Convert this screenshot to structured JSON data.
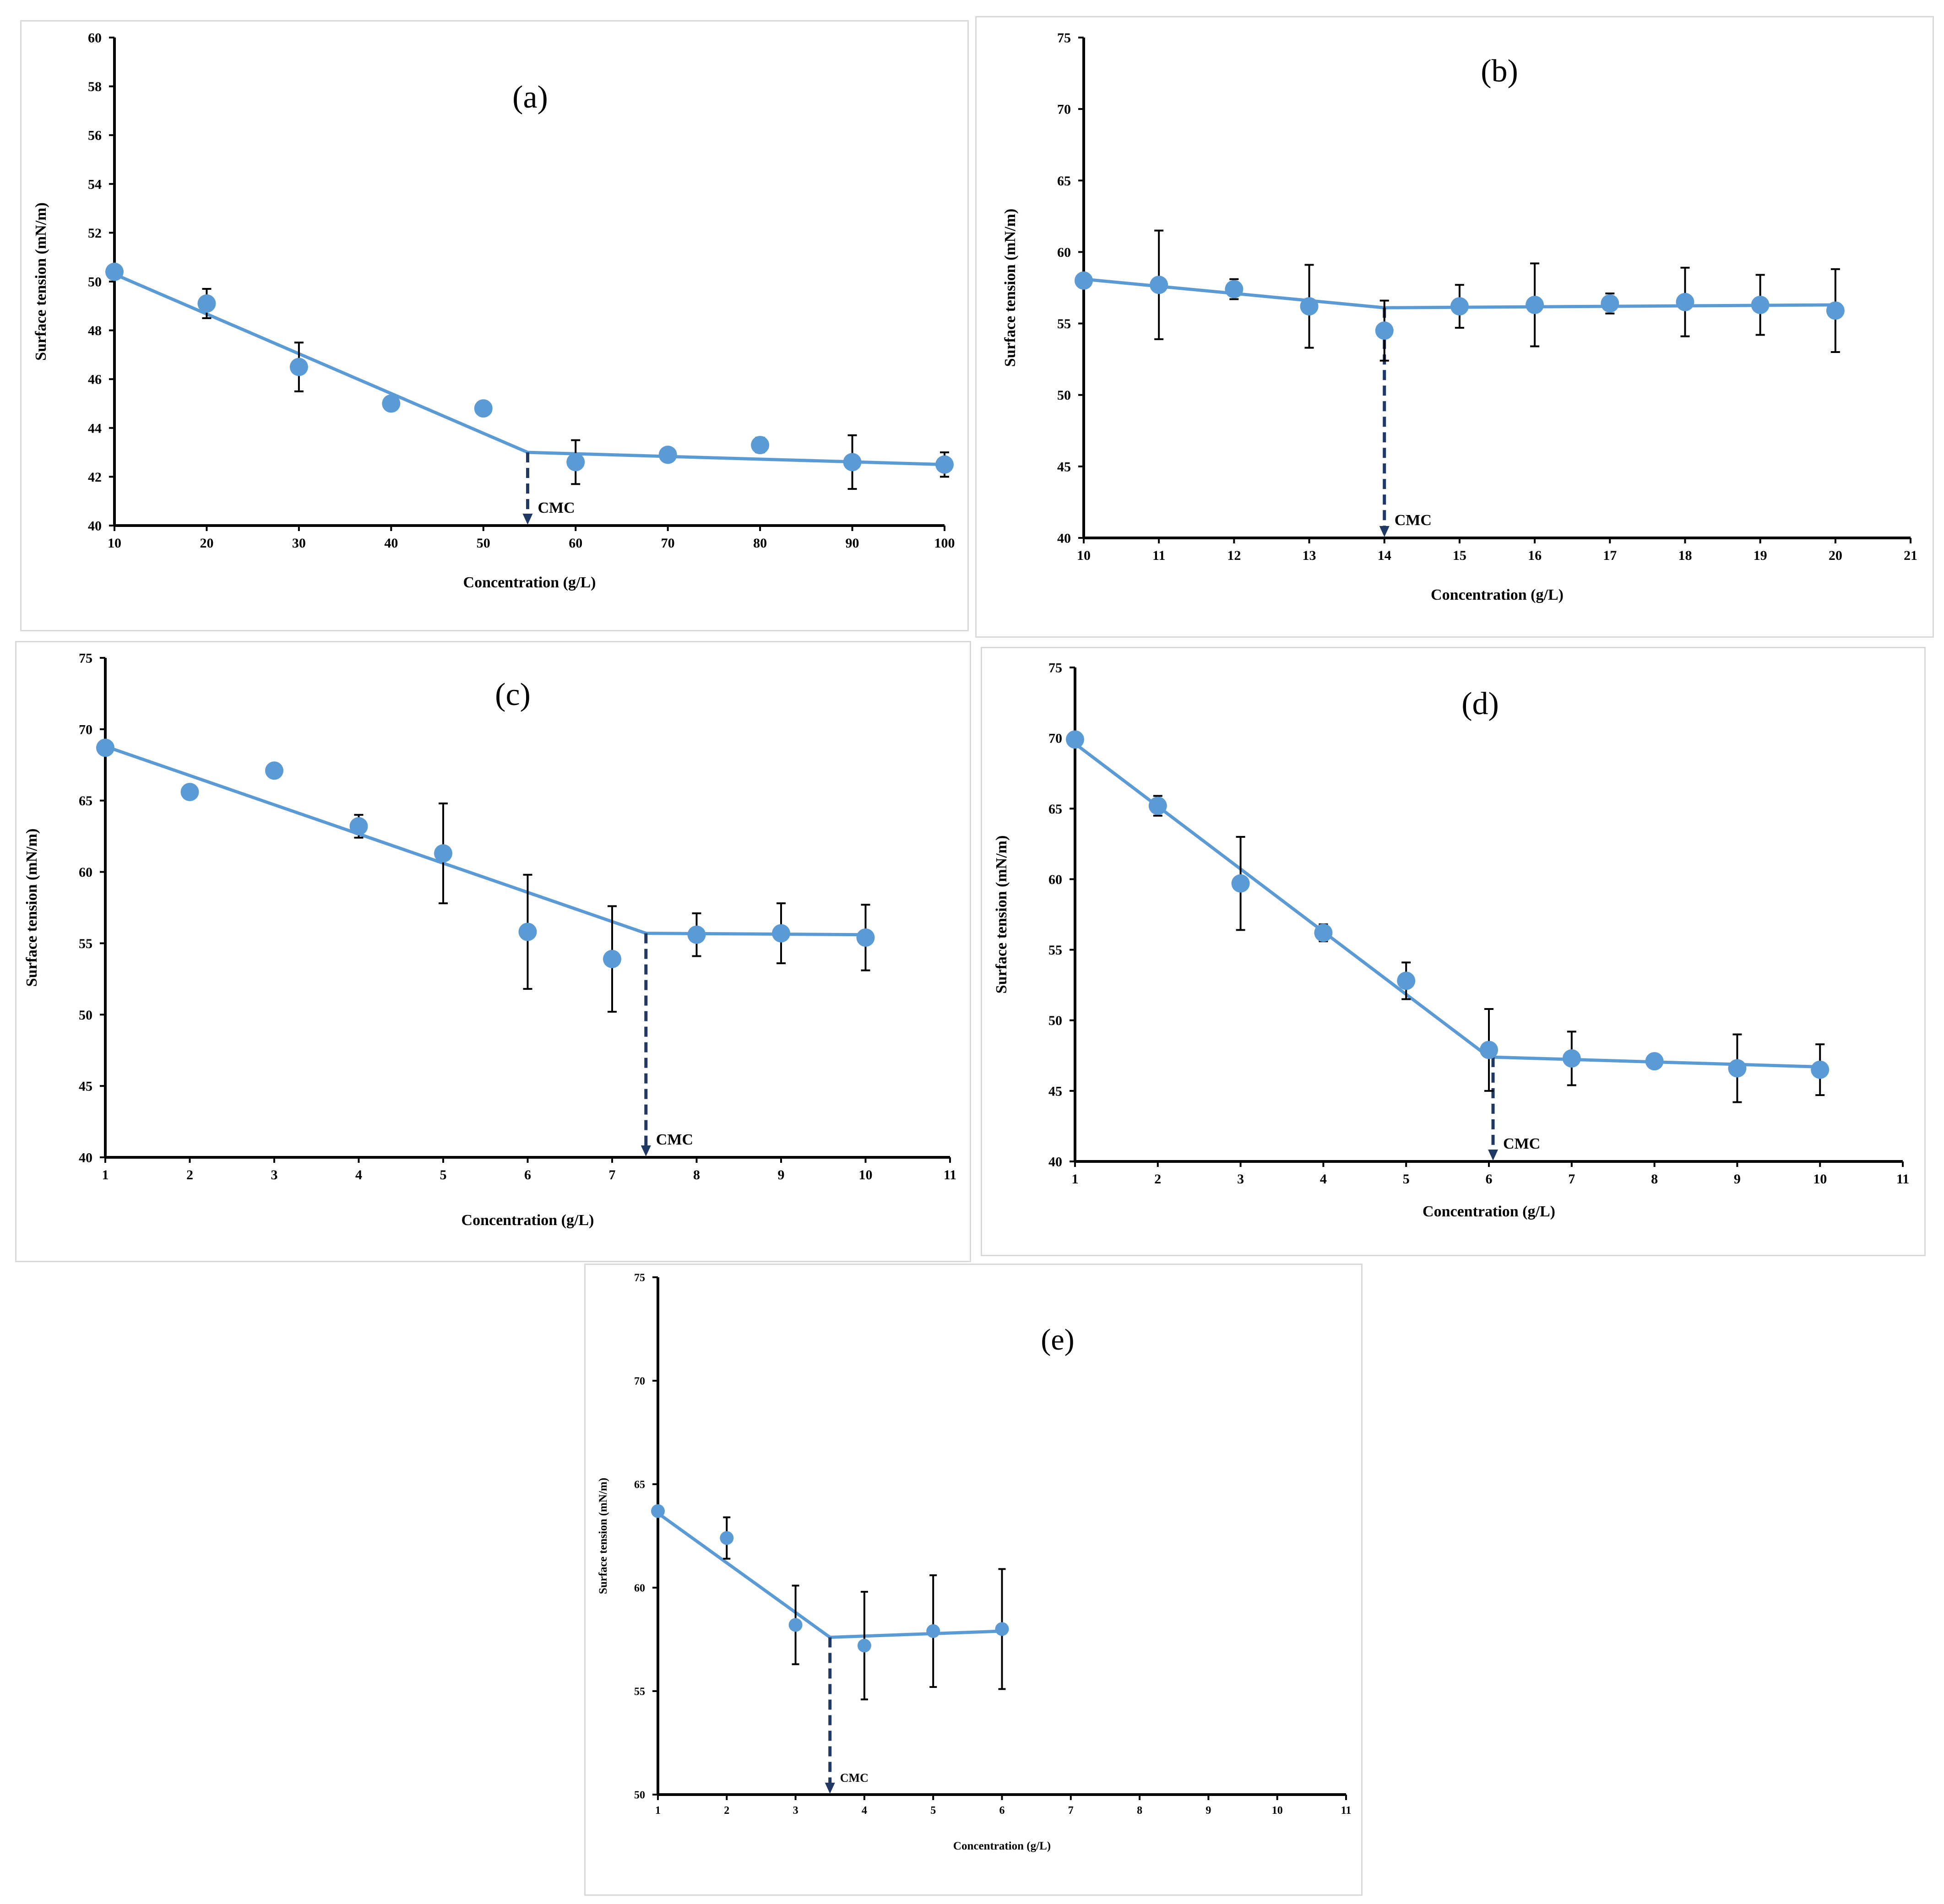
{
  "chart_data": [
    {
      "type": "scatter",
      "panel_label": "(a)",
      "xlabel": "Concentration (g/L)",
      "ylabel": "Surface tension (mN/m)",
      "xlim": [
        10,
        100
      ],
      "ylim": [
        40,
        60
      ],
      "x_ticks": [
        10,
        20,
        30,
        40,
        50,
        60,
        70,
        80,
        90,
        100
      ],
      "y_ticks": [
        40,
        42,
        44,
        46,
        48,
        50,
        52,
        54,
        56,
        58,
        60
      ],
      "points": [
        {
          "x": 10,
          "y": 50.4,
          "err": 0
        },
        {
          "x": 20,
          "y": 49.1,
          "err": 0.6
        },
        {
          "x": 30,
          "y": 46.5,
          "err": 1.0
        },
        {
          "x": 40,
          "y": 45.0,
          "err": 0
        },
        {
          "x": 50,
          "y": 44.8,
          "err": 0
        },
        {
          "x": 60,
          "y": 42.6,
          "err": 0.9
        },
        {
          "x": 70,
          "y": 42.9,
          "err": 0
        },
        {
          "x": 80,
          "y": 43.3,
          "err": 0.3
        },
        {
          "x": 90,
          "y": 42.6,
          "err": 1.1
        },
        {
          "x": 100,
          "y": 42.5,
          "err": 0.5
        }
      ],
      "fit_line": [
        [
          10,
          50.3
        ],
        [
          54.8,
          43.0
        ],
        [
          100,
          42.5
        ]
      ],
      "cmc": {
        "x": 54.8,
        "y_top": 43.0,
        "label": "CMC"
      }
    },
    {
      "type": "scatter",
      "panel_label": "(b)",
      "xlabel": "Concentration (g/L)",
      "ylabel": "Surface tension (mN/m)",
      "xlim": [
        10,
        21
      ],
      "ylim": [
        40,
        75
      ],
      "x_ticks": [
        10,
        11,
        12,
        13,
        14,
        15,
        16,
        17,
        18,
        19,
        20,
        21
      ],
      "y_ticks": [
        40,
        45,
        50,
        55,
        60,
        65,
        70,
        75
      ],
      "points": [
        {
          "x": 10,
          "y": 58.0,
          "err": 0
        },
        {
          "x": 11,
          "y": 57.7,
          "err": 3.8
        },
        {
          "x": 12,
          "y": 57.4,
          "err": 0.7
        },
        {
          "x": 13,
          "y": 56.2,
          "err": 2.9
        },
        {
          "x": 14,
          "y": 54.5,
          "err": 2.1
        },
        {
          "x": 15,
          "y": 56.2,
          "err": 1.5
        },
        {
          "x": 16,
          "y": 56.3,
          "err": 2.9
        },
        {
          "x": 17,
          "y": 56.4,
          "err": 0.7
        },
        {
          "x": 18,
          "y": 56.5,
          "err": 2.4
        },
        {
          "x": 19,
          "y": 56.3,
          "err": 2.1
        },
        {
          "x": 20,
          "y": 55.9,
          "err": 2.9
        }
      ],
      "fit_line": [
        [
          10,
          58.1
        ],
        [
          14,
          56.1
        ],
        [
          20,
          56.3
        ]
      ],
      "cmc": {
        "x": 14,
        "y_top": 56.1,
        "label": "CMC"
      }
    },
    {
      "type": "scatter",
      "panel_label": "(c)",
      "xlabel": "Concentration (g/L)",
      "ylabel": "Surface tension (mN/m)",
      "xlim": [
        1,
        11
      ],
      "ylim": [
        40,
        75
      ],
      "x_ticks": [
        1,
        2,
        3,
        4,
        5,
        6,
        7,
        8,
        9,
        10,
        11
      ],
      "y_ticks": [
        40,
        45,
        50,
        55,
        60,
        65,
        70,
        75
      ],
      "points": [
        {
          "x": 1,
          "y": 68.7,
          "err": 0
        },
        {
          "x": 2,
          "y": 65.6,
          "err": 0
        },
        {
          "x": 3,
          "y": 67.1,
          "err": 0
        },
        {
          "x": 4,
          "y": 63.2,
          "err": 0.8
        },
        {
          "x": 5,
          "y": 61.3,
          "err": 3.5
        },
        {
          "x": 6,
          "y": 55.8,
          "err": 4.0
        },
        {
          "x": 7,
          "y": 53.9,
          "err": 3.7
        },
        {
          "x": 8,
          "y": 55.6,
          "err": 1.5
        },
        {
          "x": 9,
          "y": 55.7,
          "err": 2.1
        },
        {
          "x": 10,
          "y": 55.4,
          "err": 2.3
        }
      ],
      "fit_line": [
        [
          1,
          68.8
        ],
        [
          7.4,
          55.7
        ],
        [
          10,
          55.6
        ]
      ],
      "cmc": {
        "x": 7.4,
        "y_top": 55.7,
        "label": "CMC"
      }
    },
    {
      "type": "scatter",
      "panel_label": "(d)",
      "xlabel": "Concentration (g/L)",
      "ylabel": "Surface tension (mN/m)",
      "xlim": [
        1,
        11
      ],
      "ylim": [
        40,
        75
      ],
      "x_ticks": [
        1,
        2,
        3,
        4,
        5,
        6,
        7,
        8,
        9,
        10,
        11
      ],
      "y_ticks": [
        40,
        45,
        50,
        55,
        60,
        65,
        70,
        75
      ],
      "points": [
        {
          "x": 1,
          "y": 69.9,
          "err": 0
        },
        {
          "x": 2,
          "y": 65.2,
          "err": 0.7
        },
        {
          "x": 3,
          "y": 59.7,
          "err": 3.3
        },
        {
          "x": 4,
          "y": 56.2,
          "err": 0.6
        },
        {
          "x": 5,
          "y": 52.8,
          "err": 1.3
        },
        {
          "x": 6,
          "y": 47.9,
          "err": 2.9
        },
        {
          "x": 7,
          "y": 47.3,
          "err": 1.9
        },
        {
          "x": 8,
          "y": 47.1,
          "err": 0
        },
        {
          "x": 9,
          "y": 46.6,
          "err": 2.4
        },
        {
          "x": 10,
          "y": 46.5,
          "err": 1.8
        }
      ],
      "fit_line": [
        [
          1,
          69.6
        ],
        [
          6,
          47.4
        ],
        [
          10,
          46.7
        ]
      ],
      "cmc": {
        "x": 6.05,
        "y_top": 47.4,
        "label": "CMC"
      }
    },
    {
      "type": "scatter",
      "panel_label": "(e)",
      "xlabel": "Concentration (g/L)",
      "ylabel": "Surface tension (mN/m)",
      "xlim": [
        1,
        11
      ],
      "ylim": [
        50,
        75
      ],
      "x_ticks": [
        1,
        2,
        3,
        4,
        5,
        6,
        7,
        8,
        9,
        10,
        11
      ],
      "y_ticks": [
        50,
        55,
        60,
        65,
        70,
        75
      ],
      "points": [
        {
          "x": 1,
          "y": 63.7,
          "err": 0
        },
        {
          "x": 2,
          "y": 62.4,
          "err": 1.0
        },
        {
          "x": 3,
          "y": 58.2,
          "err": 1.9
        },
        {
          "x": 4,
          "y": 57.2,
          "err": 2.6
        },
        {
          "x": 5,
          "y": 57.9,
          "err": 2.7
        },
        {
          "x": 6,
          "y": 58.0,
          "err": 2.9
        }
      ],
      "fit_line": [
        [
          1,
          63.6
        ],
        [
          3.5,
          57.6
        ],
        [
          6,
          57.9
        ]
      ],
      "cmc": {
        "x": 3.5,
        "y_top": 57.6,
        "label": "CMC"
      }
    }
  ]
}
